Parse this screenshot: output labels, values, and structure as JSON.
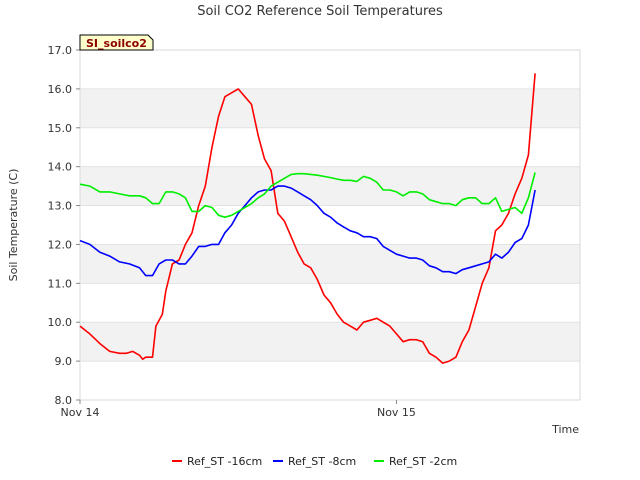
{
  "chart_data": {
    "type": "line",
    "title": "Soil CO2 Reference Soil Temperatures",
    "tag": "SI_soilco2",
    "xlabel": "Time",
    "ylabel": "Soil Temperature (C)",
    "ylim": [
      8.0,
      17.0
    ],
    "yticks": [
      "8.0",
      "9.0",
      "10.0",
      "11.0",
      "12.0",
      "13.0",
      "14.0",
      "15.0",
      "16.0",
      "17.0"
    ],
    "xlim": [
      0,
      1.58
    ],
    "xticks": [
      {
        "label": "Nov 14",
        "pos": 0
      },
      {
        "label": "Nov 15",
        "pos": 1
      }
    ],
    "grid": true,
    "legend_position": "bottom",
    "series": [
      {
        "name": "Ref_ST -16cm",
        "color": "#ff0000",
        "points": [
          [
            0.0,
            9.9
          ],
          [
            0.031,
            9.7
          ],
          [
            0.063,
            9.45
          ],
          [
            0.094,
            9.25
          ],
          [
            0.125,
            9.2
          ],
          [
            0.146,
            9.2
          ],
          [
            0.167,
            9.25
          ],
          [
            0.188,
            9.15
          ],
          [
            0.198,
            9.05
          ],
          [
            0.208,
            9.1
          ],
          [
            0.229,
            9.1
          ],
          [
            0.24,
            9.9
          ],
          [
            0.26,
            10.2
          ],
          [
            0.271,
            10.8
          ],
          [
            0.292,
            11.5
          ],
          [
            0.313,
            11.6
          ],
          [
            0.333,
            12.0
          ],
          [
            0.354,
            12.3
          ],
          [
            0.375,
            13.0
          ],
          [
            0.396,
            13.5
          ],
          [
            0.417,
            14.5
          ],
          [
            0.438,
            15.3
          ],
          [
            0.458,
            15.8
          ],
          [
            0.479,
            15.9
          ],
          [
            0.5,
            16.0
          ],
          [
            0.521,
            15.8
          ],
          [
            0.542,
            15.6
          ],
          [
            0.563,
            14.8
          ],
          [
            0.583,
            14.2
          ],
          [
            0.604,
            13.9
          ],
          [
            0.625,
            12.8
          ],
          [
            0.646,
            12.6
          ],
          [
            0.667,
            12.2
          ],
          [
            0.688,
            11.8
          ],
          [
            0.708,
            11.5
          ],
          [
            0.729,
            11.4
          ],
          [
            0.75,
            11.1
          ],
          [
            0.771,
            10.7
          ],
          [
            0.792,
            10.5
          ],
          [
            0.813,
            10.2
          ],
          [
            0.833,
            10.0
          ],
          [
            0.854,
            9.9
          ],
          [
            0.875,
            9.8
          ],
          [
            0.896,
            10.0
          ],
          [
            0.917,
            10.05
          ],
          [
            0.938,
            10.1
          ],
          [
            0.958,
            10.0
          ],
          [
            0.979,
            9.9
          ],
          [
            1.0,
            9.7
          ],
          [
            1.021,
            9.5
          ],
          [
            1.042,
            9.55
          ],
          [
            1.063,
            9.55
          ],
          [
            1.083,
            9.5
          ],
          [
            1.104,
            9.2
          ],
          [
            1.125,
            9.1
          ],
          [
            1.146,
            8.95
          ],
          [
            1.167,
            9.0
          ],
          [
            1.188,
            9.1
          ],
          [
            1.208,
            9.5
          ],
          [
            1.229,
            9.8
          ],
          [
            1.25,
            10.4
          ],
          [
            1.271,
            11.0
          ],
          [
            1.292,
            11.4
          ],
          [
            1.313,
            12.35
          ],
          [
            1.333,
            12.5
          ],
          [
            1.354,
            12.8
          ],
          [
            1.375,
            13.3
          ],
          [
            1.396,
            13.7
          ],
          [
            1.417,
            14.3
          ],
          [
            1.438,
            16.4
          ]
        ]
      },
      {
        "name": "Ref_ST -8cm",
        "color": "#0000ff",
        "points": [
          [
            0.0,
            12.1
          ],
          [
            0.031,
            12.0
          ],
          [
            0.063,
            11.8
          ],
          [
            0.094,
            11.7
          ],
          [
            0.125,
            11.55
          ],
          [
            0.156,
            11.5
          ],
          [
            0.188,
            11.4
          ],
          [
            0.208,
            11.2
          ],
          [
            0.229,
            11.2
          ],
          [
            0.25,
            11.5
          ],
          [
            0.271,
            11.6
          ],
          [
            0.292,
            11.6
          ],
          [
            0.313,
            11.5
          ],
          [
            0.333,
            11.5
          ],
          [
            0.354,
            11.7
          ],
          [
            0.375,
            11.95
          ],
          [
            0.396,
            11.95
          ],
          [
            0.417,
            12.0
          ],
          [
            0.438,
            12.0
          ],
          [
            0.458,
            12.3
          ],
          [
            0.479,
            12.5
          ],
          [
            0.5,
            12.8
          ],
          [
            0.521,
            13.0
          ],
          [
            0.542,
            13.2
          ],
          [
            0.563,
            13.35
          ],
          [
            0.583,
            13.4
          ],
          [
            0.604,
            13.4
          ],
          [
            0.625,
            13.5
          ],
          [
            0.646,
            13.5
          ],
          [
            0.667,
            13.45
          ],
          [
            0.688,
            13.35
          ],
          [
            0.708,
            13.25
          ],
          [
            0.729,
            13.15
          ],
          [
            0.75,
            13.0
          ],
          [
            0.771,
            12.8
          ],
          [
            0.792,
            12.7
          ],
          [
            0.813,
            12.55
          ],
          [
            0.833,
            12.45
          ],
          [
            0.854,
            12.35
          ],
          [
            0.875,
            12.3
          ],
          [
            0.896,
            12.2
          ],
          [
            0.917,
            12.2
          ],
          [
            0.938,
            12.15
          ],
          [
            0.958,
            11.95
          ],
          [
            0.979,
            11.85
          ],
          [
            1.0,
            11.75
          ],
          [
            1.021,
            11.7
          ],
          [
            1.042,
            11.65
          ],
          [
            1.063,
            11.65
          ],
          [
            1.083,
            11.6
          ],
          [
            1.104,
            11.45
          ],
          [
            1.125,
            11.4
          ],
          [
            1.146,
            11.3
          ],
          [
            1.167,
            11.3
          ],
          [
            1.188,
            11.25
          ],
          [
            1.208,
            11.35
          ],
          [
            1.229,
            11.4
          ],
          [
            1.25,
            11.45
          ],
          [
            1.271,
            11.5
          ],
          [
            1.292,
            11.55
          ],
          [
            1.313,
            11.75
          ],
          [
            1.333,
            11.65
          ],
          [
            1.354,
            11.8
          ],
          [
            1.375,
            12.05
          ],
          [
            1.396,
            12.15
          ],
          [
            1.417,
            12.5
          ],
          [
            1.438,
            13.4
          ]
        ]
      },
      {
        "name": "Ref_ST -2cm",
        "color": "#00ee00",
        "points": [
          [
            0.0,
            13.55
          ],
          [
            0.031,
            13.5
          ],
          [
            0.063,
            13.35
          ],
          [
            0.094,
            13.35
          ],
          [
            0.125,
            13.3
          ],
          [
            0.156,
            13.25
          ],
          [
            0.188,
            13.25
          ],
          [
            0.208,
            13.2
          ],
          [
            0.229,
            13.05
          ],
          [
            0.25,
            13.05
          ],
          [
            0.271,
            13.35
          ],
          [
            0.292,
            13.35
          ],
          [
            0.313,
            13.3
          ],
          [
            0.333,
            13.2
          ],
          [
            0.354,
            12.85
          ],
          [
            0.375,
            12.85
          ],
          [
            0.396,
            13.0
          ],
          [
            0.417,
            12.95
          ],
          [
            0.438,
            12.75
          ],
          [
            0.458,
            12.7
          ],
          [
            0.479,
            12.75
          ],
          [
            0.5,
            12.85
          ],
          [
            0.521,
            12.95
          ],
          [
            0.542,
            13.05
          ],
          [
            0.563,
            13.2
          ],
          [
            0.583,
            13.3
          ],
          [
            0.604,
            13.5
          ],
          [
            0.625,
            13.6
          ],
          [
            0.646,
            13.7
          ],
          [
            0.667,
            13.8
          ],
          [
            0.688,
            13.82
          ],
          [
            0.708,
            13.82
          ],
          [
            0.729,
            13.8
          ],
          [
            0.75,
            13.78
          ],
          [
            0.771,
            13.75
          ],
          [
            0.792,
            13.72
          ],
          [
            0.813,
            13.68
          ],
          [
            0.833,
            13.65
          ],
          [
            0.854,
            13.65
          ],
          [
            0.875,
            13.62
          ],
          [
            0.896,
            13.75
          ],
          [
            0.917,
            13.7
          ],
          [
            0.938,
            13.6
          ],
          [
            0.958,
            13.4
          ],
          [
            0.979,
            13.4
          ],
          [
            1.0,
            13.35
          ],
          [
            1.021,
            13.25
          ],
          [
            1.042,
            13.35
          ],
          [
            1.063,
            13.35
          ],
          [
            1.083,
            13.3
          ],
          [
            1.104,
            13.15
          ],
          [
            1.125,
            13.1
          ],
          [
            1.146,
            13.05
          ],
          [
            1.167,
            13.05
          ],
          [
            1.188,
            13.0
          ],
          [
            1.208,
            13.15
          ],
          [
            1.229,
            13.2
          ],
          [
            1.25,
            13.2
          ],
          [
            1.271,
            13.05
          ],
          [
            1.292,
            13.05
          ],
          [
            1.313,
            13.2
          ],
          [
            1.333,
            12.85
          ],
          [
            1.354,
            12.9
          ],
          [
            1.375,
            12.95
          ],
          [
            1.396,
            12.8
          ],
          [
            1.417,
            13.2
          ],
          [
            1.438,
            13.85
          ]
        ]
      }
    ]
  }
}
